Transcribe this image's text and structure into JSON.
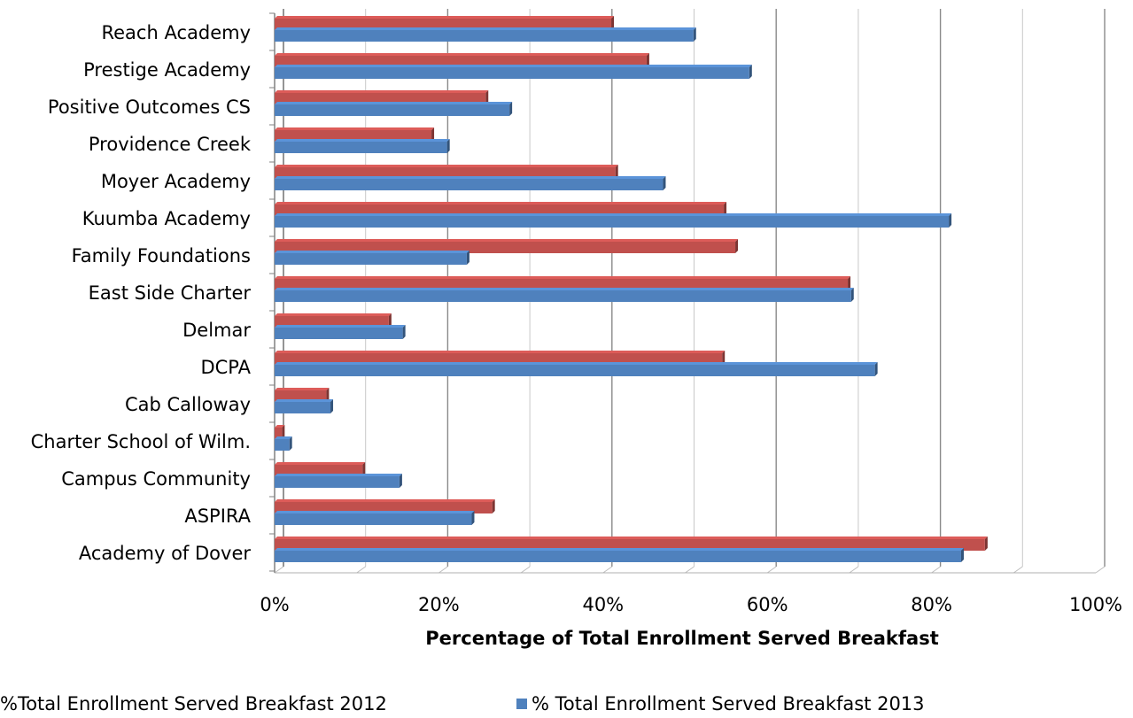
{
  "chart_data": {
    "type": "bar",
    "orientation": "horizontal",
    "categories": [
      "Reach Academy",
      "Prestige Academy",
      "Positive Outcomes CS",
      "Providence Creek",
      "Moyer Academy",
      "Kuumba Academy",
      "Family Foundations",
      "East Side Charter",
      "Delmar",
      "DCPA",
      "Cab Calloway",
      "Charter School of Wilm.",
      "Campus Community",
      "ASPIRA",
      "Academy of Dover"
    ],
    "series": [
      {
        "name": "%Total Enrollment Served Breakfast 2012",
        "color": "#c0504d",
        "values": [
          41,
          45.3,
          25.7,
          19.1,
          41.5,
          54.7,
          56.1,
          69.8,
          13.9,
          54.5,
          6.3,
          0.9,
          10.7,
          26.5,
          86.5
        ]
      },
      {
        "name": "% Total Enrollment Served Breakfast 2013",
        "color": "#4f81bd",
        "values": [
          51,
          57.8,
          28.6,
          21,
          47.3,
          82.1,
          23.4,
          70.2,
          15.6,
          73.1,
          6.8,
          1.8,
          15.2,
          24,
          83.6
        ]
      }
    ],
    "xlabel": "Percentage of Total Enrollment Served Breakfast",
    "xlim": [
      0,
      100
    ],
    "xticks": [
      "0%",
      "20%",
      "40%",
      "60%",
      "80%",
      "100%"
    ],
    "grid": true,
    "legend_position": "bottom"
  }
}
